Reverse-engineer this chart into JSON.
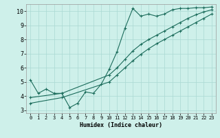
{
  "xlabel": "Humidex (Indice chaleur)",
  "xlim": [
    -0.5,
    23.5
  ],
  "ylim": [
    2.8,
    10.5
  ],
  "xticks": [
    0,
    1,
    2,
    3,
    4,
    5,
    6,
    7,
    8,
    9,
    10,
    11,
    12,
    13,
    14,
    15,
    16,
    17,
    18,
    19,
    20,
    21,
    22,
    23
  ],
  "yticks": [
    3,
    4,
    5,
    6,
    7,
    8,
    9,
    10
  ],
  "bg_color": "#cef0ea",
  "grid_color": "#aad8d2",
  "line_color": "#1a6b5a",
  "line1_x": [
    0,
    1,
    2,
    3,
    4,
    5,
    6,
    7,
    8,
    9,
    10,
    11,
    12,
    13,
    14,
    15,
    16,
    17,
    18,
    19,
    20,
    21,
    22,
    23
  ],
  "line1_y": [
    5.15,
    4.2,
    4.5,
    4.2,
    4.2,
    3.2,
    3.5,
    4.3,
    4.2,
    4.85,
    5.9,
    7.15,
    8.8,
    10.2,
    9.65,
    9.8,
    9.65,
    9.8,
    10.1,
    10.2,
    10.2,
    10.25,
    10.25,
    10.3
  ],
  "line2_x": [
    0,
    4,
    10,
    11,
    12,
    13,
    14,
    15,
    16,
    17,
    18,
    19,
    20,
    21,
    22,
    23
  ],
  "line2_y": [
    3.9,
    4.2,
    5.5,
    6.0,
    6.6,
    7.2,
    7.65,
    8.0,
    8.3,
    8.6,
    8.9,
    9.2,
    9.5,
    9.75,
    9.95,
    10.1
  ],
  "line3_x": [
    0,
    4,
    10,
    11,
    12,
    13,
    14,
    15,
    16,
    17,
    18,
    19,
    20,
    21,
    22,
    23
  ],
  "line3_y": [
    3.5,
    3.9,
    5.0,
    5.5,
    6.0,
    6.5,
    6.95,
    7.35,
    7.7,
    8.0,
    8.3,
    8.6,
    8.9,
    9.2,
    9.5,
    9.8
  ]
}
